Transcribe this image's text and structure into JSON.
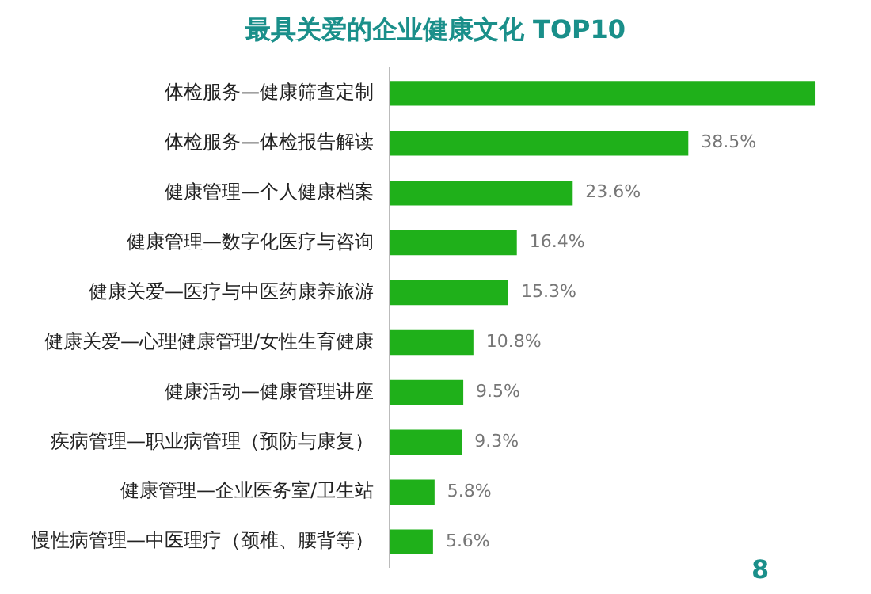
{
  "chart_data": {
    "type": "bar",
    "orientation": "horizontal",
    "title": "最具关爱的企业健康文化 TOP10",
    "categories": [
      "体检服务—健康筛查定制",
      "体检服务—体检报告解读",
      "健康管理—个人健康档案",
      "健康管理—数字化医疗与咨询",
      "健康关爱—医疗与中医药康养旅游",
      "健康关爱—心理健康管理/女性生育健康",
      "健康活动—健康管理讲座",
      "疾病管理—职业病管理（预防与康复）",
      "健康管理—企业医务室/卫生站",
      "慢性病管理—中医理疗（颈椎、腰背等）"
    ],
    "values": [
      54.8,
      38.5,
      23.6,
      16.4,
      15.3,
      10.8,
      9.5,
      9.3,
      5.8,
      5.6
    ],
    "value_labels": [
      null,
      "38.5%",
      "23.6%",
      "16.4%",
      "15.3%",
      "10.8%",
      "9.5%",
      "9.3%",
      "5.8%",
      "5.6%"
    ],
    "color": "#1fb01a",
    "tick_labels": "y",
    "grid": false,
    "legend": false,
    "annotations": [
      "8"
    ]
  }
}
